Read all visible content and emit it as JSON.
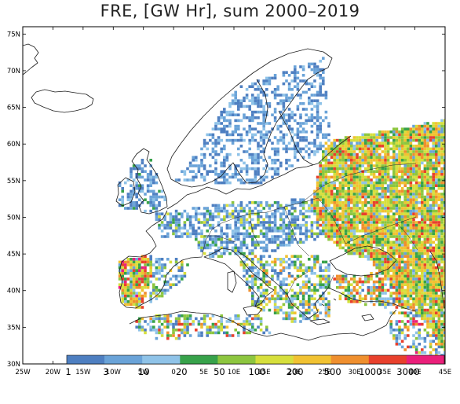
{
  "title": "FRE, [GW Hr], sum 2000–2019",
  "map": {
    "lon_range": [
      -25,
      45
    ],
    "lat_range": [
      30,
      76
    ],
    "lon_ticks": [
      "25W",
      "20W",
      "15W",
      "10W",
      "5W",
      "0",
      "5E",
      "10E",
      "15E",
      "20E",
      "25E",
      "30E",
      "35E",
      "40E",
      "45E"
    ],
    "lat_ticks": [
      "75N",
      "70N",
      "65N",
      "60N",
      "55N",
      "50N",
      "45N",
      "40N",
      "35N",
      "30N"
    ]
  },
  "colorbar": {
    "colors": [
      "#4e7fc1",
      "#6aa3d8",
      "#8fc3e8",
      "#37a24a",
      "#8dc63f",
      "#d6df3c",
      "#f1c232",
      "#ef8f2e",
      "#e8402c",
      "#ea1f7a"
    ],
    "labels": [
      "1",
      "3",
      "10",
      "20",
      "50",
      "100",
      "200",
      "500",
      "1000",
      "3000"
    ]
  },
  "colors": {
    "coast": "#1a1a1a",
    "frame": "#000000"
  }
}
